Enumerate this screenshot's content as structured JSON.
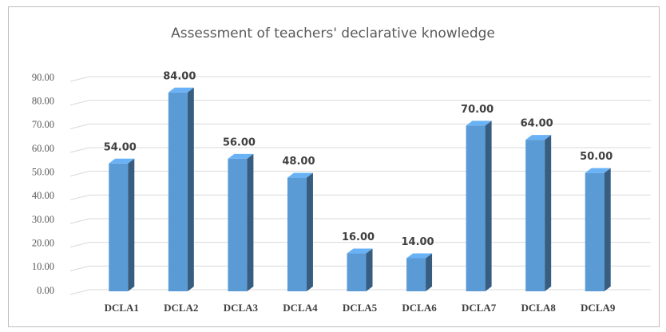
{
  "chart_data": {
    "type": "bar3d",
    "title": "Assessment of teachers' declarative knowledge",
    "categories": [
      "DCLA1",
      "DCLA2",
      "DCLA3",
      "DCLA4",
      "DCLA5",
      "DCLA6",
      "DCLA7",
      "DCLA8",
      "DCLA9"
    ],
    "values": [
      54,
      84,
      56,
      48,
      16,
      14,
      70,
      64,
      50
    ],
    "value_labels": [
      "54.00",
      "84.00",
      "56.00",
      "48.00",
      "16.00",
      "14.00",
      "70.00",
      "64.00",
      "50.00"
    ],
    "color": "#5b9bd5",
    "ylim": [
      0,
      90
    ],
    "yticks": [
      {
        "value": 0,
        "label": "0.00"
      },
      {
        "value": 10,
        "label": "10.00"
      },
      {
        "value": 20,
        "label": "20.00"
      },
      {
        "value": 30,
        "label": "30.00"
      },
      {
        "value": 40,
        "label": "40.00"
      },
      {
        "value": 50,
        "label": "50.00"
      },
      {
        "value": 60,
        "label": "60.00"
      },
      {
        "value": 70,
        "label": "70.00"
      },
      {
        "value": 80,
        "label": "80.00"
      },
      {
        "value": 90,
        "label": "90.00"
      }
    ],
    "grid": true
  }
}
